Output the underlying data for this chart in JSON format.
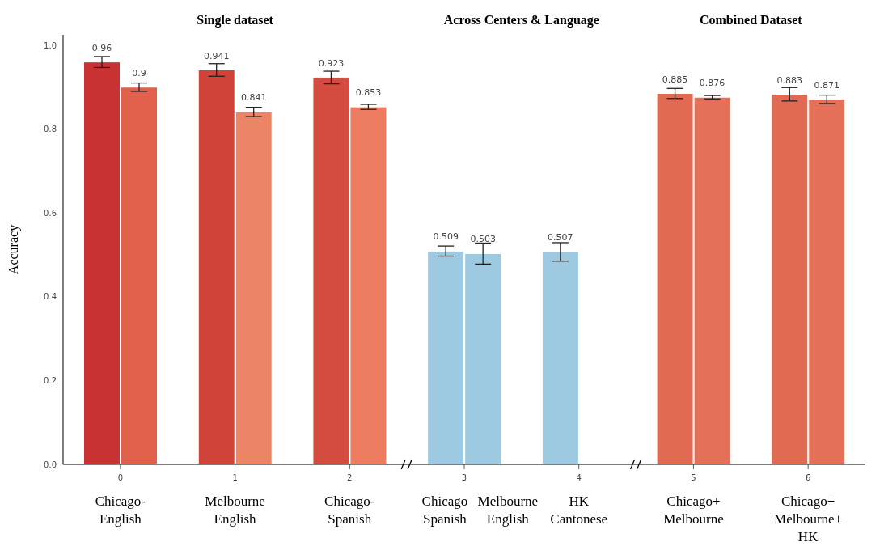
{
  "chart_data": {
    "type": "bar",
    "ylabel": "Accuracy",
    "categories": [
      "0",
      "1",
      "2",
      "3",
      "4",
      "5",
      "6"
    ],
    "series": [
      {
        "colors": [
          "#c83232",
          "#cf4339",
          "#d44c3f",
          "#9ecae1",
          "#9ecae1",
          "#e16a53",
          "#e16a53"
        ],
        "values": [
          0.96,
          0.941,
          0.923,
          0.509,
          0.507,
          0.885,
          0.883
        ],
        "errors": [
          0.013,
          0.015,
          0.015,
          0.012,
          0.022,
          0.012,
          0.016
        ]
      },
      {
        "colors": [
          "#e0604c",
          "#ec8466",
          "#ec7d61",
          "#9ecae1",
          null,
          "#e4705a",
          "#e4705a"
        ],
        "values": [
          0.9,
          0.841,
          0.853,
          0.503,
          null,
          0.876,
          0.871
        ],
        "errors": [
          0.01,
          0.011,
          0.006,
          0.025,
          null,
          0.004,
          0.01
        ]
      }
    ],
    "ylim": [
      0,
      1.025
    ],
    "yticks": [
      {
        "value": 0,
        "label": "0.0"
      },
      0.2,
      0.4,
      0.6,
      0.8,
      {
        "value": 1,
        "label": "1.0"
      }
    ],
    "data_labels": true,
    "grid": false,
    "legend": false,
    "annotations": [
      "Single dataset",
      "Across Centers & Language",
      "Combined Dataset",
      "Chicago-English",
      "Melbourne English",
      "Chicago-Spanish",
      "Chicago Spanish",
      "Melbourne English",
      "HK Cantonese",
      "Chicago+ Melbourne",
      "Chicago+ Melbourne+ HK"
    ]
  }
}
